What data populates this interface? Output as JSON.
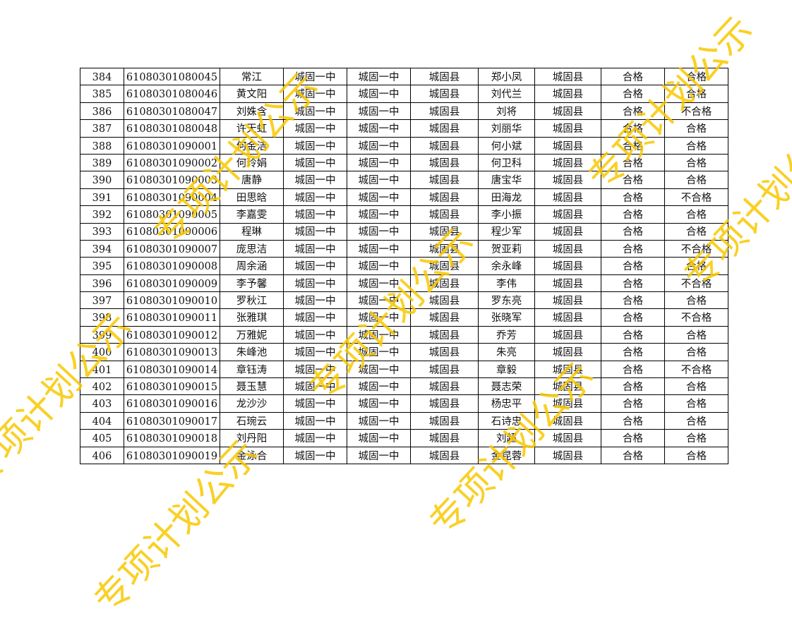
{
  "watermark_text": "专项计划公示",
  "watermark_color": "#f9c800",
  "rows": [
    [
      "384",
      "61080301080045",
      "常江",
      "城固一中",
      "城固一中",
      "城固县",
      "郑小凤",
      "城固县",
      "合格",
      "合格"
    ],
    [
      "385",
      "61080301080046",
      "黄文阳",
      "城固一中",
      "城固一中",
      "城固县",
      "刘代兰",
      "城固县",
      "合格",
      "合格"
    ],
    [
      "386",
      "61080301080047",
      "刘姝含",
      "城固一中",
      "城固一中",
      "城固县",
      "刘将",
      "城固县",
      "合格",
      "不合格"
    ],
    [
      "387",
      "61080301080048",
      "许天虹",
      "城固一中",
      "城固一中",
      "城固县",
      "刘丽华",
      "城固县",
      "合格",
      "合格"
    ],
    [
      "388",
      "61080301090001",
      "何金洁",
      "城固一中",
      "城固一中",
      "城固县",
      "何小斌",
      "城固县",
      "合格",
      "合格"
    ],
    [
      "389",
      "61080301090002",
      "何玲娟",
      "城固一中",
      "城固一中",
      "城固县",
      "何卫科",
      "城固县",
      "合格",
      "合格"
    ],
    [
      "390",
      "61080301090003",
      "唐静",
      "城固一中",
      "城固一中",
      "城固县",
      "唐宝华",
      "城固县",
      "合格",
      "合格"
    ],
    [
      "391",
      "61080301090004",
      "田思晗",
      "城固一中",
      "城固一中",
      "城固县",
      "田海龙",
      "城固县",
      "合格",
      "不合格"
    ],
    [
      "392",
      "61080301090005",
      "李嘉雯",
      "城固一中",
      "城固一中",
      "城固县",
      "李小振",
      "城固县",
      "合格",
      "合格"
    ],
    [
      "393",
      "61080301090006",
      "程琳",
      "城固一中",
      "城固一中",
      "城固县",
      "程少军",
      "城固县",
      "合格",
      "合格"
    ],
    [
      "394",
      "61080301090007",
      "庞思洁",
      "城固一中",
      "城固一中",
      "城固县",
      "贺亚莉",
      "城固县",
      "合格",
      "不合格"
    ],
    [
      "395",
      "61080301090008",
      "周余涵",
      "城固一中",
      "城固一中",
      "城固县",
      "余永峰",
      "城固县",
      "合格",
      "合格"
    ],
    [
      "396",
      "61080301090009",
      "李予馨",
      "城固一中",
      "城固一中",
      "城固县",
      "李伟",
      "城固县",
      "合格",
      "不合格"
    ],
    [
      "397",
      "61080301090010",
      "罗秋江",
      "城固一中",
      "城固一中",
      "城固县",
      "罗东亮",
      "城固县",
      "合格",
      "合格"
    ],
    [
      "398",
      "61080301090011",
      "张雅琪",
      "城固一中",
      "城固一中",
      "城固县",
      "张晓军",
      "城固县",
      "合格",
      "不合格"
    ],
    [
      "399",
      "61080301090012",
      "万雅妮",
      "城固一中",
      "城固一中",
      "城固县",
      "乔芳",
      "城固县",
      "合格",
      "合格"
    ],
    [
      "400",
      "61080301090013",
      "朱峰池",
      "城固一中",
      "城固一中",
      "城固县",
      "朱亮",
      "城固县",
      "合格",
      "合格"
    ],
    [
      "401",
      "61080301090014",
      "章钰涛",
      "城固一中",
      "城固一中",
      "城固县",
      "章毅",
      "城固县",
      "合格",
      "不合格"
    ],
    [
      "402",
      "61080301090015",
      "聂玉慧",
      "城固一中",
      "城固一中",
      "城固县",
      "聂志荣",
      "城固县",
      "合格",
      "合格"
    ],
    [
      "403",
      "61080301090016",
      "龙沙沙",
      "城固一中",
      "城固一中",
      "城固县",
      "杨忠平",
      "城固县",
      "合格",
      "合格"
    ],
    [
      "404",
      "61080301090017",
      "石琬云",
      "城固一中",
      "城固一中",
      "城固县",
      "石诗忠",
      "城固县",
      "合格",
      "合格"
    ],
    [
      "405",
      "61080301090018",
      "刘丹阳",
      "城固一中",
      "城固一中",
      "城固县",
      "刘超",
      "城固县",
      "合格",
      "合格"
    ],
    [
      "406",
      "61080301090019",
      "金泳合",
      "城固一中",
      "城固一中",
      "城固县",
      "金昆蓉",
      "城固县",
      "合格",
      "合格"
    ]
  ]
}
